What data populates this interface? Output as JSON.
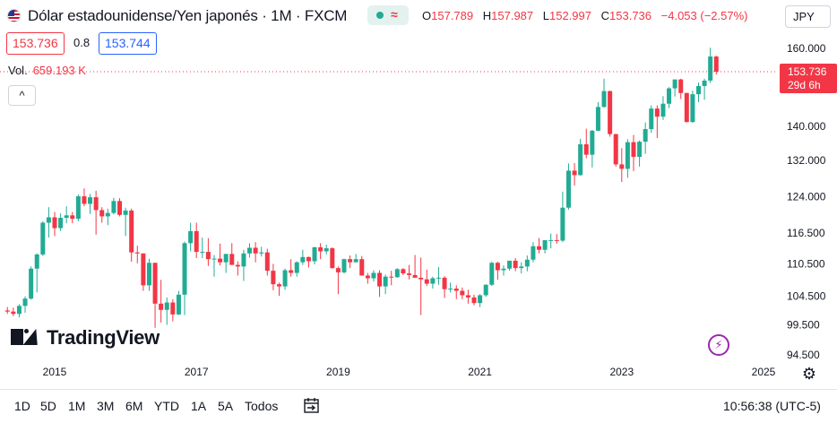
{
  "header": {
    "title": "Dólar estadounidense/Yen japonés · 1M · FXCM",
    "status_symbol": "≈",
    "ohlc": [
      {
        "key": "O",
        "value": "157.789"
      },
      {
        "key": "H",
        "value": "157.987"
      },
      {
        "key": "L",
        "value": "152.997"
      },
      {
        "key": "C",
        "value": "153.736"
      }
    ],
    "change": "−4.053 (−2.57%)",
    "sell_price": "153.736",
    "spread": "0.8",
    "buy_price": "153.744",
    "volume_label": "Vol.",
    "volume_value": "659.193 K",
    "collapse_symbol": "^",
    "currency": "JPY"
  },
  "colors": {
    "up": "#22ab94",
    "down": "#f23645",
    "text": "#131722",
    "buy": "#2962ff",
    "accent_purple": "#9c27b0"
  },
  "chart_data": {
    "type": "candlestick",
    "interval": "1M",
    "y_scale": "log",
    "ylim": [
      94.5,
      163.0
    ],
    "y_ticks": [
      "160.000",
      "140.000",
      "132.000",
      "124.000",
      "116.500",
      "110.500",
      "104.500",
      "99.500",
      "94.500"
    ],
    "x_ticks": [
      "2015",
      "2017",
      "2019",
      "2021",
      "2023",
      "2025"
    ],
    "last_price_label": "153.736",
    "countdown_label": "29d 6h",
    "candles": [
      {
        "date": "2014-05",
        "o": 102.0,
        "h": 102.6,
        "l": 101.4,
        "c": 101.8
      },
      {
        "date": "2014-06",
        "o": 101.8,
        "h": 102.5,
        "l": 101.0,
        "c": 101.4
      },
      {
        "date": "2014-07",
        "o": 101.4,
        "h": 103.1,
        "l": 100.8,
        "c": 102.8
      },
      {
        "date": "2014-08",
        "o": 102.8,
        "h": 104.5,
        "l": 101.6,
        "c": 104.1
      },
      {
        "date": "2014-09",
        "o": 104.1,
        "h": 110.0,
        "l": 103.9,
        "c": 109.6
      },
      {
        "date": "2014-10",
        "o": 109.6,
        "h": 112.5,
        "l": 105.2,
        "c": 112.3
      },
      {
        "date": "2014-11",
        "o": 112.3,
        "h": 118.9,
        "l": 112.0,
        "c": 118.6
      },
      {
        "date": "2014-12",
        "o": 118.6,
        "h": 121.8,
        "l": 115.6,
        "c": 119.7
      },
      {
        "date": "2015-01",
        "o": 119.7,
        "h": 120.8,
        "l": 115.9,
        "c": 117.5
      },
      {
        "date": "2015-02",
        "o": 117.5,
        "h": 120.5,
        "l": 116.9,
        "c": 119.6
      },
      {
        "date": "2015-03",
        "o": 119.6,
        "h": 122.0,
        "l": 118.5,
        "c": 120.1
      },
      {
        "date": "2015-04",
        "o": 120.1,
        "h": 120.8,
        "l": 118.5,
        "c": 119.4
      },
      {
        "date": "2015-05",
        "o": 119.4,
        "h": 124.5,
        "l": 118.9,
        "c": 124.1
      },
      {
        "date": "2015-06",
        "o": 124.1,
        "h": 125.8,
        "l": 122.0,
        "c": 122.5
      },
      {
        "date": "2015-07",
        "o": 122.5,
        "h": 124.6,
        "l": 120.4,
        "c": 123.9
      },
      {
        "date": "2015-08",
        "o": 123.9,
        "h": 125.3,
        "l": 116.2,
        "c": 121.2
      },
      {
        "date": "2015-09",
        "o": 121.2,
        "h": 121.8,
        "l": 118.6,
        "c": 119.9
      },
      {
        "date": "2015-10",
        "o": 119.9,
        "h": 121.5,
        "l": 118.1,
        "c": 120.6
      },
      {
        "date": "2015-11",
        "o": 120.6,
        "h": 123.8,
        "l": 120.3,
        "c": 123.1
      },
      {
        "date": "2015-12",
        "o": 123.1,
        "h": 123.7,
        "l": 119.9,
        "c": 120.2
      },
      {
        "date": "2016-01",
        "o": 120.2,
        "h": 121.7,
        "l": 115.9,
        "c": 121.1
      },
      {
        "date": "2016-02",
        "o": 121.1,
        "h": 121.5,
        "l": 110.9,
        "c": 112.7
      },
      {
        "date": "2016-03",
        "o": 112.7,
        "h": 114.0,
        "l": 110.6,
        "c": 112.5
      },
      {
        "date": "2016-04",
        "o": 112.5,
        "h": 112.5,
        "l": 105.5,
        "c": 106.5
      },
      {
        "date": "2016-05",
        "o": 106.5,
        "h": 111.5,
        "l": 105.5,
        "c": 110.7
      },
      {
        "date": "2016-06",
        "o": 110.7,
        "h": 110.7,
        "l": 99.0,
        "c": 103.2
      },
      {
        "date": "2016-07",
        "o": 103.2,
        "h": 107.5,
        "l": 99.9,
        "c": 102.1
      },
      {
        "date": "2016-08",
        "o": 102.1,
        "h": 104.3,
        "l": 99.5,
        "c": 103.4
      },
      {
        "date": "2016-09",
        "o": 103.4,
        "h": 104.0,
        "l": 100.1,
        "c": 101.3
      },
      {
        "date": "2016-10",
        "o": 101.3,
        "h": 105.5,
        "l": 101.2,
        "c": 104.8
      },
      {
        "date": "2016-11",
        "o": 104.8,
        "h": 114.8,
        "l": 101.2,
        "c": 114.5
      },
      {
        "date": "2016-12",
        "o": 114.5,
        "h": 118.6,
        "l": 112.9,
        "c": 116.9
      },
      {
        "date": "2017-01",
        "o": 116.9,
        "h": 118.6,
        "l": 111.6,
        "c": 112.8
      },
      {
        "date": "2017-02",
        "o": 112.8,
        "h": 115.6,
        "l": 111.6,
        "c": 112.8
      },
      {
        "date": "2017-03",
        "o": 112.8,
        "h": 115.5,
        "l": 110.1,
        "c": 111.4
      },
      {
        "date": "2017-04",
        "o": 111.4,
        "h": 112.2,
        "l": 108.1,
        "c": 111.5
      },
      {
        "date": "2017-05",
        "o": 111.5,
        "h": 114.4,
        "l": 110.2,
        "c": 110.8
      },
      {
        "date": "2017-06",
        "o": 110.8,
        "h": 112.4,
        "l": 108.8,
        "c": 112.4
      },
      {
        "date": "2017-07",
        "o": 112.4,
        "h": 114.5,
        "l": 110.3,
        "c": 110.3
      },
      {
        "date": "2017-08",
        "o": 110.3,
        "h": 111.0,
        "l": 108.3,
        "c": 110.0
      },
      {
        "date": "2017-09",
        "o": 110.0,
        "h": 113.2,
        "l": 107.3,
        "c": 112.5
      },
      {
        "date": "2017-10",
        "o": 112.5,
        "h": 114.5,
        "l": 111.7,
        "c": 113.6
      },
      {
        "date": "2017-11",
        "o": 113.6,
        "h": 114.7,
        "l": 110.8,
        "c": 112.5
      },
      {
        "date": "2017-12",
        "o": 112.5,
        "h": 113.8,
        "l": 111.9,
        "c": 112.7
      },
      {
        "date": "2018-01",
        "o": 112.7,
        "h": 113.4,
        "l": 108.3,
        "c": 109.2
      },
      {
        "date": "2018-02",
        "o": 109.2,
        "h": 110.5,
        "l": 105.6,
        "c": 106.7
      },
      {
        "date": "2018-03",
        "o": 106.7,
        "h": 107.0,
        "l": 104.6,
        "c": 106.3
      },
      {
        "date": "2018-04",
        "o": 106.3,
        "h": 109.6,
        "l": 105.7,
        "c": 109.3
      },
      {
        "date": "2018-05",
        "o": 109.3,
        "h": 111.4,
        "l": 108.1,
        "c": 108.8
      },
      {
        "date": "2018-06",
        "o": 108.8,
        "h": 111.0,
        "l": 108.1,
        "c": 110.8
      },
      {
        "date": "2018-07",
        "o": 110.8,
        "h": 113.2,
        "l": 110.3,
        "c": 111.8
      },
      {
        "date": "2018-08",
        "o": 111.8,
        "h": 111.9,
        "l": 109.8,
        "c": 111.0
      },
      {
        "date": "2018-09",
        "o": 111.0,
        "h": 113.8,
        "l": 110.4,
        "c": 113.7
      },
      {
        "date": "2018-10",
        "o": 113.7,
        "h": 114.5,
        "l": 111.4,
        "c": 112.9
      },
      {
        "date": "2018-11",
        "o": 112.9,
        "h": 114.2,
        "l": 112.3,
        "c": 113.5
      },
      {
        "date": "2018-12",
        "o": 113.5,
        "h": 113.7,
        "l": 109.6,
        "c": 109.7
      },
      {
        "date": "2019-01",
        "o": 109.7,
        "h": 110.0,
        "l": 104.9,
        "c": 108.9
      },
      {
        "date": "2019-02",
        "o": 108.9,
        "h": 111.5,
        "l": 108.7,
        "c": 111.4
      },
      {
        "date": "2019-03",
        "o": 111.4,
        "h": 112.1,
        "l": 109.7,
        "c": 110.8
      },
      {
        "date": "2019-04",
        "o": 110.8,
        "h": 112.4,
        "l": 110.8,
        "c": 111.4
      },
      {
        "date": "2019-05",
        "o": 111.4,
        "h": 112.0,
        "l": 108.3,
        "c": 108.3
      },
      {
        "date": "2019-06",
        "o": 108.3,
        "h": 108.8,
        "l": 106.8,
        "c": 107.8
      },
      {
        "date": "2019-07",
        "o": 107.8,
        "h": 109.3,
        "l": 107.2,
        "c": 108.8
      },
      {
        "date": "2019-08",
        "o": 108.8,
        "h": 109.3,
        "l": 104.4,
        "c": 106.3
      },
      {
        "date": "2019-09",
        "o": 106.3,
        "h": 108.5,
        "l": 104.9,
        "c": 108.1
      },
      {
        "date": "2019-10",
        "o": 108.1,
        "h": 109.2,
        "l": 106.5,
        "c": 108.0
      },
      {
        "date": "2019-11",
        "o": 108.0,
        "h": 109.7,
        "l": 107.9,
        "c": 109.5
      },
      {
        "date": "2019-12",
        "o": 109.5,
        "h": 109.7,
        "l": 108.4,
        "c": 108.7
      },
      {
        "date": "2020-01",
        "o": 108.7,
        "h": 110.3,
        "l": 107.6,
        "c": 108.4
      },
      {
        "date": "2020-02",
        "o": 108.4,
        "h": 112.2,
        "l": 107.9,
        "c": 107.9
      },
      {
        "date": "2020-03",
        "o": 107.9,
        "h": 111.7,
        "l": 101.2,
        "c": 107.6
      },
      {
        "date": "2020-04",
        "o": 107.6,
        "h": 109.4,
        "l": 106.4,
        "c": 106.8
      },
      {
        "date": "2020-05",
        "o": 106.8,
        "h": 108.1,
        "l": 105.9,
        "c": 107.8
      },
      {
        "date": "2020-06",
        "o": 107.8,
        "h": 109.9,
        "l": 106.6,
        "c": 107.9
      },
      {
        "date": "2020-07",
        "o": 107.9,
        "h": 108.2,
        "l": 104.2,
        "c": 105.8
      },
      {
        "date": "2020-08",
        "o": 105.8,
        "h": 107.0,
        "l": 105.2,
        "c": 105.9
      },
      {
        "date": "2020-09",
        "o": 105.9,
        "h": 106.5,
        "l": 104.0,
        "c": 105.5
      },
      {
        "date": "2020-10",
        "o": 105.5,
        "h": 106.1,
        "l": 104.0,
        "c": 104.7
      },
      {
        "date": "2020-11",
        "o": 104.7,
        "h": 105.7,
        "l": 103.2,
        "c": 104.3
      },
      {
        "date": "2020-12",
        "o": 104.3,
        "h": 104.8,
        "l": 102.9,
        "c": 103.3
      },
      {
        "date": "2021-01",
        "o": 103.3,
        "h": 104.9,
        "l": 102.6,
        "c": 104.7
      },
      {
        "date": "2021-02",
        "o": 104.7,
        "h": 106.7,
        "l": 104.4,
        "c": 106.6
      },
      {
        "date": "2021-03",
        "o": 106.6,
        "h": 110.9,
        "l": 106.4,
        "c": 110.7
      },
      {
        "date": "2021-04",
        "o": 110.7,
        "h": 110.9,
        "l": 107.5,
        "c": 109.3
      },
      {
        "date": "2021-05",
        "o": 109.3,
        "h": 110.2,
        "l": 108.3,
        "c": 109.6
      },
      {
        "date": "2021-06",
        "o": 109.6,
        "h": 111.1,
        "l": 109.2,
        "c": 111.1
      },
      {
        "date": "2021-07",
        "o": 111.1,
        "h": 111.6,
        "l": 109.1,
        "c": 109.7
      },
      {
        "date": "2021-08",
        "o": 109.7,
        "h": 110.8,
        "l": 108.7,
        "c": 110.0
      },
      {
        "date": "2021-09",
        "o": 110.0,
        "h": 112.1,
        "l": 109.1,
        "c": 111.3
      },
      {
        "date": "2021-10",
        "o": 111.3,
        "h": 114.7,
        "l": 110.8,
        "c": 113.9
      },
      {
        "date": "2021-11",
        "o": 113.9,
        "h": 115.5,
        "l": 112.5,
        "c": 113.2
      },
      {
        "date": "2021-12",
        "o": 113.2,
        "h": 115.1,
        "l": 112.5,
        "c": 115.1
      },
      {
        "date": "2022-01",
        "o": 115.1,
        "h": 116.4,
        "l": 113.5,
        "c": 115.1
      },
      {
        "date": "2022-02",
        "o": 115.1,
        "h": 116.3,
        "l": 114.4,
        "c": 115.0
      },
      {
        "date": "2022-03",
        "o": 115.0,
        "h": 125.1,
        "l": 114.7,
        "c": 121.7
      },
      {
        "date": "2022-04",
        "o": 121.7,
        "h": 131.3,
        "l": 121.3,
        "c": 129.7
      },
      {
        "date": "2022-05",
        "o": 129.7,
        "h": 131.4,
        "l": 126.4,
        "c": 128.7
      },
      {
        "date": "2022-06",
        "o": 128.7,
        "h": 137.0,
        "l": 128.6,
        "c": 135.7
      },
      {
        "date": "2022-07",
        "o": 135.7,
        "h": 139.4,
        "l": 132.5,
        "c": 133.3
      },
      {
        "date": "2022-08",
        "o": 133.3,
        "h": 139.1,
        "l": 130.4,
        "c": 138.9
      },
      {
        "date": "2022-09",
        "o": 138.9,
        "h": 145.9,
        "l": 138.8,
        "c": 144.7
      },
      {
        "date": "2022-10",
        "o": 144.7,
        "h": 151.9,
        "l": 144.5,
        "c": 148.7
      },
      {
        "date": "2022-11",
        "o": 148.7,
        "h": 148.8,
        "l": 137.5,
        "c": 138.1
      },
      {
        "date": "2022-12",
        "o": 138.1,
        "h": 138.2,
        "l": 130.6,
        "c": 131.1
      },
      {
        "date": "2023-01",
        "o": 131.1,
        "h": 134.8,
        "l": 127.2,
        "c": 130.1
      },
      {
        "date": "2023-02",
        "o": 130.1,
        "h": 136.9,
        "l": 128.1,
        "c": 136.2
      },
      {
        "date": "2023-03",
        "o": 136.2,
        "h": 137.9,
        "l": 129.6,
        "c": 132.8
      },
      {
        "date": "2023-04",
        "o": 132.8,
        "h": 136.6,
        "l": 130.6,
        "c": 136.3
      },
      {
        "date": "2023-05",
        "o": 136.3,
        "h": 140.9,
        "l": 133.5,
        "c": 139.3
      },
      {
        "date": "2023-06",
        "o": 139.3,
        "h": 145.1,
        "l": 138.4,
        "c": 144.3
      },
      {
        "date": "2023-07",
        "o": 144.3,
        "h": 145.1,
        "l": 137.2,
        "c": 142.3
      },
      {
        "date": "2023-08",
        "o": 142.3,
        "h": 147.4,
        "l": 141.5,
        "c": 145.5
      },
      {
        "date": "2023-09",
        "o": 145.5,
        "h": 149.7,
        "l": 144.4,
        "c": 149.4
      },
      {
        "date": "2023-10",
        "o": 149.4,
        "h": 151.7,
        "l": 147.3,
        "c": 151.7
      },
      {
        "date": "2023-11",
        "o": 151.7,
        "h": 151.9,
        "l": 146.7,
        "c": 148.2
      },
      {
        "date": "2023-12",
        "o": 148.2,
        "h": 148.3,
        "l": 140.9,
        "c": 141.0
      },
      {
        "date": "2024-01",
        "o": 141.0,
        "h": 148.8,
        "l": 140.8,
        "c": 147.9
      },
      {
        "date": "2024-02",
        "o": 147.9,
        "h": 150.9,
        "l": 145.9,
        "c": 150.0
      },
      {
        "date": "2024-03",
        "o": 150.0,
        "h": 151.9,
        "l": 146.5,
        "c": 151.4
      },
      {
        "date": "2024-04",
        "o": 151.4,
        "h": 160.2,
        "l": 150.8,
        "c": 157.8
      },
      {
        "date": "2024-05",
        "o": 157.789,
        "h": 157.987,
        "l": 152.997,
        "c": 153.736
      }
    ]
  },
  "branding": {
    "logo_text": "TradingView"
  },
  "bottombar": {
    "ranges": [
      "1D",
      "5D",
      "1M",
      "3M",
      "6M",
      "YTD",
      "1A",
      "5A",
      "Todos"
    ],
    "clock": "10:56:38 (UTC-5)"
  }
}
